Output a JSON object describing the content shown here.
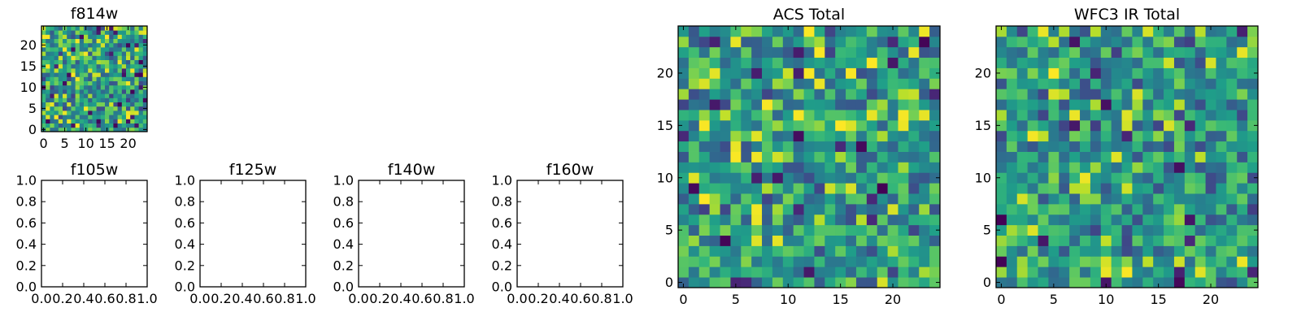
{
  "chart_data": [
    {
      "type": "heatmap",
      "id": "f814w",
      "title": "f814w",
      "grid_size": 25,
      "xticks": [
        0,
        5,
        10,
        15,
        20
      ],
      "yticks": [
        0,
        5,
        10,
        15,
        20
      ],
      "xlim": [
        -0.5,
        24.5
      ],
      "ylim": [
        -0.5,
        24.5
      ],
      "colormap": "viridis",
      "seed": 814,
      "outlier_fraction": 0.06
    },
    {
      "type": "heatmap",
      "id": "f105w",
      "title": "f105w",
      "empty": true,
      "xticks": [
        "0.0",
        "0.2",
        "0.4",
        "0.6",
        "0.8",
        "1.0"
      ],
      "yticks": [
        "0.0",
        "0.2",
        "0.4",
        "0.6",
        "0.8",
        "1.0"
      ],
      "xlim": [
        0,
        1
      ],
      "ylim": [
        0,
        1
      ]
    },
    {
      "type": "heatmap",
      "id": "f125w",
      "title": "f125w",
      "empty": true,
      "xticks": [
        "0.0",
        "0.2",
        "0.4",
        "0.6",
        "0.8",
        "1.0"
      ],
      "yticks": [
        "0.0",
        "0.2",
        "0.4",
        "0.6",
        "0.8",
        "1.0"
      ],
      "xlim": [
        0,
        1
      ],
      "ylim": [
        0,
        1
      ]
    },
    {
      "type": "heatmap",
      "id": "f140w",
      "title": "f140w",
      "empty": true,
      "xticks": [
        "0.0",
        "0.2",
        "0.4",
        "0.6",
        "0.8",
        "1.0"
      ],
      "yticks": [
        "0.0",
        "0.2",
        "0.4",
        "0.6",
        "0.8",
        "1.0"
      ],
      "xlim": [
        0,
        1
      ],
      "ylim": [
        0,
        1
      ]
    },
    {
      "type": "heatmap",
      "id": "f160w",
      "title": "f160w",
      "empty": true,
      "xticks": [
        "0.0",
        "0.2",
        "0.4",
        "0.6",
        "0.8",
        "1.0"
      ],
      "yticks": [
        "0.0",
        "0.2",
        "0.4",
        "0.6",
        "0.8",
        "1.0"
      ],
      "xlim": [
        0,
        1
      ],
      "ylim": [
        0,
        1
      ]
    },
    {
      "type": "heatmap",
      "id": "acs-total",
      "title": "ACS Total",
      "grid_size": 25,
      "xticks": [
        0,
        5,
        10,
        15,
        20
      ],
      "yticks": [
        0,
        5,
        10,
        15,
        20
      ],
      "xlim": [
        -0.5,
        24.5
      ],
      "ylim": [
        -0.5,
        24.5
      ],
      "colormap": "viridis",
      "seed": 2021,
      "outlier_fraction": 0.035
    },
    {
      "type": "heatmap",
      "id": "wfc3-ir-total",
      "title": "WFC3 IR Total",
      "grid_size": 25,
      "xticks": [
        0,
        5,
        10,
        15,
        20
      ],
      "yticks": [
        0,
        5,
        10,
        15,
        20
      ],
      "xlim": [
        -0.5,
        24.5
      ],
      "ylim": [
        -0.5,
        24.5
      ],
      "colormap": "viridis",
      "seed": 3117,
      "outlier_fraction": 0.025
    }
  ]
}
